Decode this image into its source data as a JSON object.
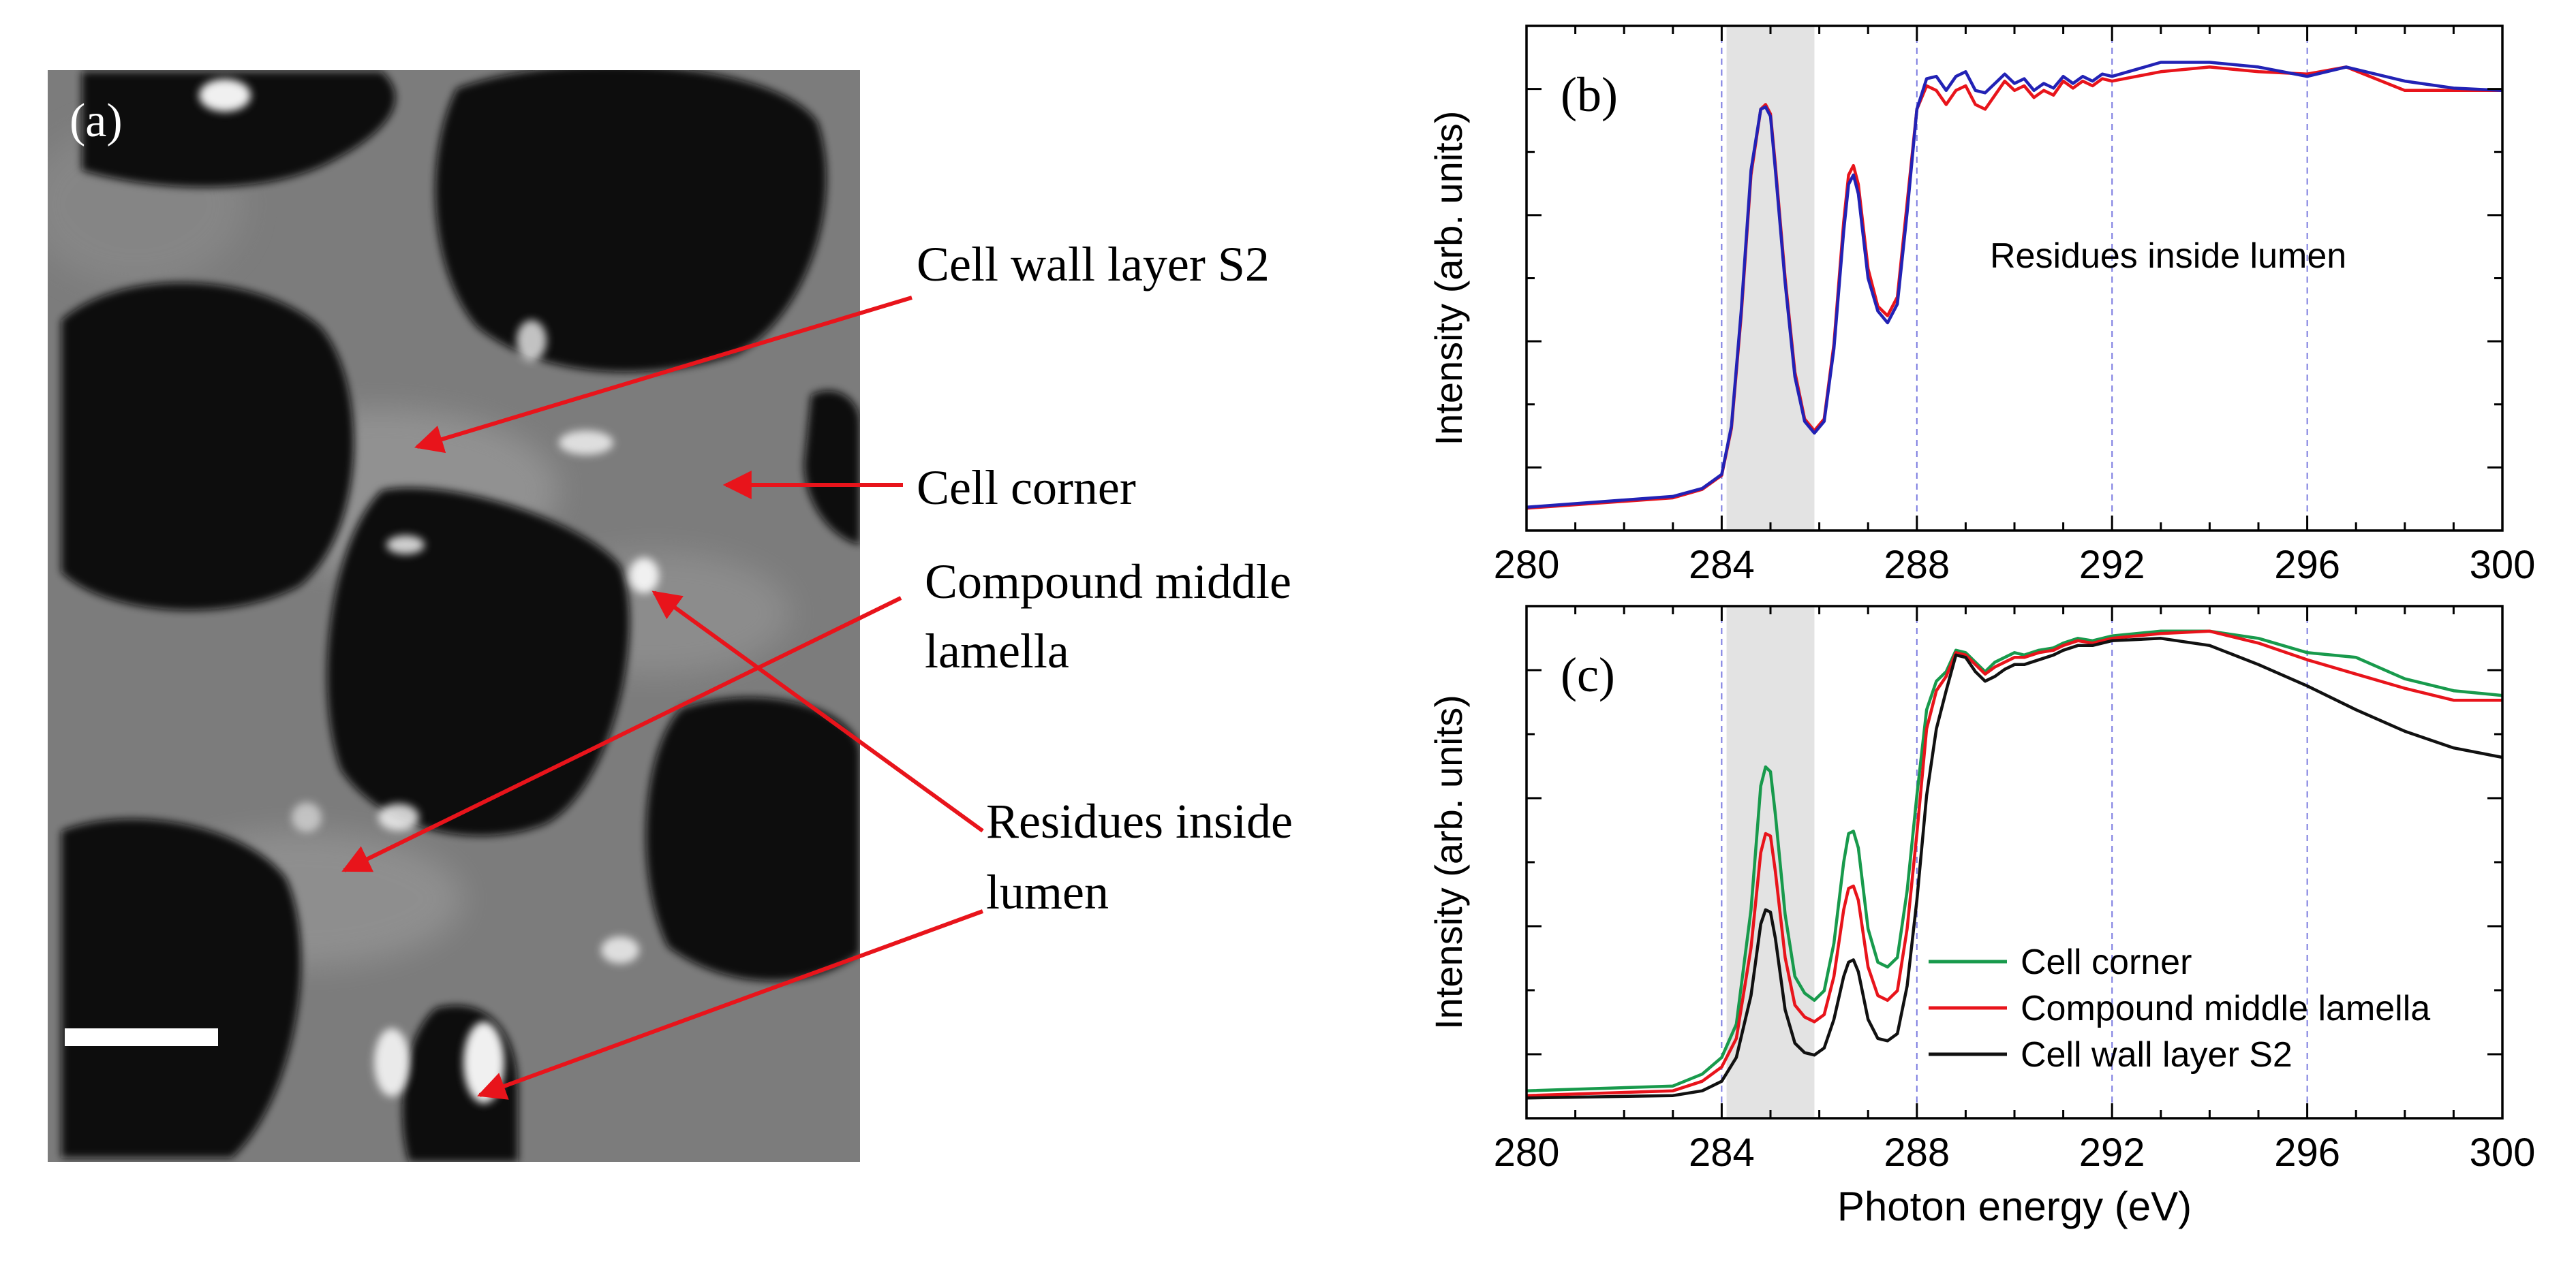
{
  "figure": {
    "colors": {
      "arrow": "#e8141b",
      "scale_bar": "#ffffff",
      "shade": "#e3e3e3",
      "grid": "#7b7be0",
      "axis": "#000000"
    }
  },
  "panel_a": {
    "label": "(a)",
    "annotations": [
      {
        "id": "s2",
        "lines": [
          "Cell wall layer S2"
        ]
      },
      {
        "id": "corner",
        "lines": [
          "Cell corner"
        ]
      },
      {
        "id": "cml",
        "lines": [
          "Compound middle",
          "lamella"
        ]
      },
      {
        "id": "residues",
        "lines": [
          "Residues inside",
          "lumen"
        ]
      }
    ]
  },
  "chart_data": [
    {
      "type": "line",
      "panel_label": "(b)",
      "title": "",
      "xlabel": "",
      "ylabel": "Intensity (arb. units)",
      "annotation": "Residues inside lumen",
      "xlim": [
        280,
        300
      ],
      "ylim": [
        0,
        1
      ],
      "xticks": [
        280,
        284,
        288,
        292,
        296,
        300
      ],
      "vlines": [
        284,
        288,
        292,
        296
      ],
      "shaded_region": [
        284.1,
        285.9
      ],
      "series": [
        {
          "name": "red",
          "color": "#e8141b",
          "x": [
            280,
            283,
            283.6,
            284.0,
            284.2,
            284.4,
            284.6,
            284.8,
            284.9,
            285.0,
            285.1,
            285.3,
            285.5,
            285.7,
            285.9,
            286.1,
            286.3,
            286.5,
            286.6,
            286.7,
            286.8,
            287.0,
            287.2,
            287.4,
            287.6,
            287.8,
            288.0,
            288.2,
            288.4,
            288.6,
            288.8,
            289.0,
            289.2,
            289.4,
            289.6,
            289.8,
            290.0,
            290.2,
            290.4,
            290.6,
            290.8,
            291.0,
            291.2,
            291.4,
            291.6,
            291.8,
            292.0,
            293,
            294,
            295,
            296,
            296.8,
            298,
            299,
            300
          ],
          "y": [
            0.01,
            0.032,
            0.05,
            0.08,
            0.18,
            0.42,
            0.72,
            0.86,
            0.87,
            0.85,
            0.74,
            0.5,
            0.3,
            0.2,
            0.175,
            0.2,
            0.36,
            0.62,
            0.72,
            0.74,
            0.7,
            0.52,
            0.44,
            0.42,
            0.46,
            0.66,
            0.86,
            0.91,
            0.9,
            0.87,
            0.9,
            0.91,
            0.87,
            0.86,
            0.89,
            0.92,
            0.9,
            0.91,
            0.885,
            0.9,
            0.89,
            0.92,
            0.905,
            0.92,
            0.91,
            0.925,
            0.92,
            0.94,
            0.95,
            0.94,
            0.935,
            0.95,
            0.9,
            0.9,
            0.9
          ]
        },
        {
          "name": "blue",
          "color": "#2222b5",
          "x": [
            280,
            283,
            283.6,
            284.0,
            284.2,
            284.4,
            284.6,
            284.8,
            284.9,
            285.0,
            285.1,
            285.3,
            285.5,
            285.7,
            285.9,
            286.1,
            286.3,
            286.5,
            286.6,
            286.7,
            286.8,
            287.0,
            287.2,
            287.4,
            287.6,
            287.8,
            288.0,
            288.2,
            288.4,
            288.6,
            288.8,
            289.0,
            289.2,
            289.4,
            289.6,
            289.8,
            290.0,
            290.2,
            290.4,
            290.6,
            290.8,
            291.0,
            291.2,
            291.4,
            291.6,
            291.8,
            292.0,
            293,
            294,
            295,
            296,
            296.8,
            298,
            299,
            300
          ],
          "y": [
            0.012,
            0.035,
            0.052,
            0.082,
            0.185,
            0.43,
            0.73,
            0.86,
            0.865,
            0.845,
            0.73,
            0.49,
            0.29,
            0.195,
            0.17,
            0.195,
            0.35,
            0.6,
            0.7,
            0.72,
            0.68,
            0.5,
            0.43,
            0.405,
            0.445,
            0.64,
            0.86,
            0.925,
            0.93,
            0.9,
            0.93,
            0.94,
            0.9,
            0.895,
            0.915,
            0.935,
            0.915,
            0.925,
            0.9,
            0.915,
            0.905,
            0.93,
            0.915,
            0.93,
            0.92,
            0.935,
            0.93,
            0.96,
            0.96,
            0.95,
            0.93,
            0.95,
            0.92,
            0.905,
            0.9
          ]
        }
      ]
    },
    {
      "type": "line",
      "panel_label": "(c)",
      "title": "",
      "xlabel": "Photon energy (eV)",
      "ylabel": "Intensity (arb. units)",
      "xlim": [
        280,
        300
      ],
      "ylim": [
        0,
        1
      ],
      "xticks": [
        280,
        284,
        288,
        292,
        296,
        300
      ],
      "vlines": [
        284,
        288,
        292,
        296,
        300
      ],
      "shaded_region": [
        284.1,
        285.9
      ],
      "legend": "bottom-right",
      "series": [
        {
          "name": "Cell corner",
          "color": "#189a4c",
          "x": [
            280,
            283,
            283.6,
            284.0,
            284.3,
            284.6,
            284.8,
            284.9,
            285.0,
            285.1,
            285.3,
            285.5,
            285.7,
            285.9,
            286.1,
            286.3,
            286.5,
            286.6,
            286.7,
            286.8,
            287.0,
            287.2,
            287.4,
            287.6,
            287.8,
            288.0,
            288.2,
            288.4,
            288.6,
            288.8,
            289.0,
            289.2,
            289.4,
            289.6,
            289.8,
            290.0,
            290.2,
            290.5,
            290.8,
            291.0,
            291.3,
            291.6,
            292.0,
            293,
            294,
            295,
            296,
            297,
            298,
            299,
            300
          ],
          "y": [
            0.02,
            0.03,
            0.055,
            0.09,
            0.16,
            0.4,
            0.66,
            0.7,
            0.69,
            0.6,
            0.39,
            0.26,
            0.225,
            0.21,
            0.23,
            0.33,
            0.5,
            0.56,
            0.565,
            0.53,
            0.36,
            0.29,
            0.28,
            0.3,
            0.44,
            0.64,
            0.82,
            0.88,
            0.9,
            0.945,
            0.94,
            0.92,
            0.9,
            0.92,
            0.93,
            0.94,
            0.935,
            0.945,
            0.95,
            0.96,
            0.97,
            0.965,
            0.975,
            0.985,
            0.985,
            0.97,
            0.94,
            0.93,
            0.885,
            0.86,
            0.85
          ]
        },
        {
          "name": "Compound middle lamella",
          "color": "#e8141b",
          "x": [
            280,
            283,
            283.6,
            284.0,
            284.3,
            284.6,
            284.8,
            284.9,
            285.0,
            285.1,
            285.3,
            285.5,
            285.7,
            285.9,
            286.1,
            286.3,
            286.5,
            286.6,
            286.7,
            286.8,
            287.0,
            287.2,
            287.4,
            287.6,
            287.8,
            288.0,
            288.2,
            288.4,
            288.6,
            288.8,
            289.0,
            289.2,
            289.4,
            289.6,
            289.8,
            290.0,
            290.2,
            290.5,
            290.8,
            291.0,
            291.3,
            291.6,
            292.0,
            293,
            294,
            295,
            296,
            297,
            298,
            299,
            300
          ],
          "y": [
            0.01,
            0.02,
            0.04,
            0.07,
            0.13,
            0.32,
            0.52,
            0.56,
            0.555,
            0.48,
            0.3,
            0.2,
            0.175,
            0.165,
            0.18,
            0.26,
            0.4,
            0.445,
            0.45,
            0.42,
            0.28,
            0.22,
            0.21,
            0.23,
            0.36,
            0.56,
            0.78,
            0.86,
            0.89,
            0.94,
            0.935,
            0.915,
            0.895,
            0.91,
            0.92,
            0.93,
            0.93,
            0.94,
            0.945,
            0.955,
            0.965,
            0.96,
            0.97,
            0.98,
            0.985,
            0.96,
            0.925,
            0.895,
            0.865,
            0.84,
            0.84
          ]
        },
        {
          "name": "Cell wall layer S2",
          "color": "#111111",
          "x": [
            280,
            283,
            283.6,
            284.0,
            284.3,
            284.6,
            284.8,
            284.9,
            285.0,
            285.1,
            285.3,
            285.5,
            285.7,
            285.9,
            286.1,
            286.3,
            286.5,
            286.6,
            286.7,
            286.8,
            287.0,
            287.2,
            287.4,
            287.6,
            287.8,
            288.0,
            288.2,
            288.4,
            288.6,
            288.8,
            289.0,
            289.2,
            289.4,
            289.6,
            289.8,
            290.0,
            290.2,
            290.5,
            290.8,
            291.0,
            291.3,
            291.6,
            292.0,
            293,
            294,
            295,
            296,
            297,
            298,
            299,
            300
          ],
          "y": [
            0.005,
            0.01,
            0.02,
            0.04,
            0.09,
            0.22,
            0.37,
            0.4,
            0.395,
            0.34,
            0.19,
            0.12,
            0.1,
            0.095,
            0.11,
            0.17,
            0.26,
            0.29,
            0.295,
            0.27,
            0.17,
            0.13,
            0.125,
            0.14,
            0.24,
            0.42,
            0.64,
            0.78,
            0.86,
            0.935,
            0.93,
            0.9,
            0.88,
            0.89,
            0.905,
            0.915,
            0.915,
            0.925,
            0.935,
            0.945,
            0.955,
            0.955,
            0.965,
            0.97,
            0.955,
            0.915,
            0.87,
            0.82,
            0.775,
            0.74,
            0.72
          ]
        }
      ]
    }
  ]
}
